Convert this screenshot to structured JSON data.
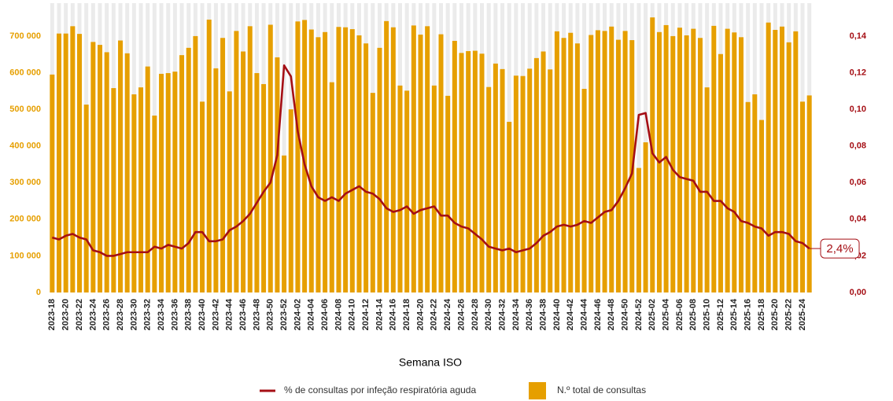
{
  "chart_data": {
    "type": "bar_line",
    "x_label": "Semana ISO",
    "categories": [
      "2023-18",
      null,
      "2023-20",
      null,
      "2023-22",
      null,
      "2023-24",
      null,
      "2023-26",
      null,
      "2023-28",
      null,
      "2023-30",
      null,
      "2023-32",
      null,
      "2023-34",
      null,
      "2023-36",
      null,
      "2023-38",
      null,
      "2023-40",
      null,
      "2023-42",
      null,
      "2023-44",
      null,
      "2023-46",
      null,
      "2023-48",
      null,
      "2023-50",
      null,
      "2023-52",
      null,
      "2024-02",
      null,
      "2024-04",
      null,
      "2024-06",
      null,
      "2024-08",
      null,
      "2024-10",
      null,
      "2024-12",
      null,
      "2024-14",
      null,
      "2024-16",
      null,
      "2024-18",
      null,
      "2024-20",
      null,
      "2024-22",
      null,
      "2024-24",
      null,
      "2024-26",
      null,
      "2024-28",
      null,
      "2024-30",
      null,
      "2024-32",
      null,
      "2024-34",
      null,
      "2024-36",
      null,
      "2024-38",
      null,
      "2024-40",
      null,
      "2024-42",
      null,
      "2024-44",
      null,
      "2024-46",
      null,
      "2024-48",
      null,
      "2024-50",
      null,
      "2024-52",
      null,
      "2025-02",
      null,
      "2025-04",
      null,
      "2025-06",
      null,
      "2025-08",
      null,
      "2025-10",
      null,
      "2025-12",
      null,
      "2025-14",
      null,
      "2025-16",
      null,
      "2025-18",
      null,
      "2025-20",
      null,
      "2025-22",
      null,
      "2025-24",
      null
    ],
    "series": [
      {
        "name": "N.º total de consultas",
        "type": "bar",
        "color": "#e69f00",
        "axis": "y",
        "values": [
          595000,
          707000,
          707000,
          727000,
          706000,
          513000,
          684000,
          676000,
          656000,
          558000,
          688000,
          653000,
          541000,
          560000,
          617000,
          483000,
          597000,
          599000,
          603000,
          648000,
          668000,
          700000,
          521000,
          745000,
          612000,
          695000,
          549000,
          714000,
          658000,
          727000,
          599000,
          569000,
          731000,
          642000,
          374000,
          500000,
          740000,
          744000,
          718000,
          697000,
          711000,
          574000,
          725000,
          724000,
          719000,
          702000,
          680000,
          545000,
          668000,
          741000,
          724000,
          565000,
          551000,
          729000,
          704000,
          727000,
          565000,
          705000,
          537000,
          687000,
          654000,
          659000,
          660000,
          652000,
          561000,
          625000,
          610000,
          466000,
          592000,
          591000,
          611000,
          640000,
          658000,
          609000,
          713000,
          695000,
          709000,
          680000,
          556000,
          703000,
          716000,
          714000,
          726000,
          690000,
          714000,
          689000,
          340000,
          410000,
          751000,
          711000,
          730000,
          700000,
          723000,
          702000,
          720000,
          695000,
          560000,
          728000,
          651000,
          720000,
          710000,
          697000,
          520000,
          541000,
          471000,
          737000,
          717000,
          726000,
          683000,
          713000,
          521000,
          538000
        ]
      },
      {
        "name": "% de consultas por infeção respiratória aguda",
        "type": "line",
        "color": "#a50f15",
        "axis": "y2",
        "values": [
          0.03,
          0.029,
          0.031,
          0.032,
          0.03,
          0.029,
          0.023,
          0.022,
          0.02,
          0.02,
          0.021,
          0.022,
          0.022,
          0.022,
          0.022,
          0.025,
          0.024,
          0.026,
          0.025,
          0.024,
          0.027,
          0.033,
          0.033,
          0.028,
          0.028,
          0.029,
          0.034,
          0.036,
          0.039,
          0.043,
          0.049,
          0.055,
          0.06,
          0.075,
          0.124,
          0.118,
          0.088,
          0.07,
          0.058,
          0.052,
          0.05,
          0.052,
          0.05,
          0.054,
          0.056,
          0.058,
          0.055,
          0.054,
          0.051,
          0.046,
          0.044,
          0.045,
          0.047,
          0.043,
          0.045,
          0.046,
          0.047,
          0.042,
          0.042,
          0.038,
          0.036,
          0.035,
          0.032,
          0.029,
          0.025,
          0.024,
          0.023,
          0.024,
          0.022,
          0.023,
          0.024,
          0.027,
          0.031,
          0.033,
          0.036,
          0.037,
          0.036,
          0.037,
          0.039,
          0.038,
          0.041,
          0.044,
          0.045,
          0.05,
          0.057,
          0.065,
          0.097,
          0.098,
          0.076,
          0.071,
          0.074,
          0.067,
          0.063,
          0.062,
          0.061,
          0.055,
          0.055,
          0.05,
          0.05,
          0.046,
          0.044,
          0.039,
          0.038,
          0.036,
          0.035,
          0.031,
          0.033,
          0.033,
          0.032,
          0.028,
          0.027,
          0.024
        ]
      }
    ],
    "annotation": "2,4%",
    "ylim": [
      0,
      790000
    ],
    "yticks": [
      0,
      {
        "value": 100000,
        "label": "100 000"
      },
      {
        "value": 200000,
        "label": "200 000"
      },
      {
        "value": 300000,
        "label": "300 000"
      },
      {
        "value": 400000,
        "label": "400 000"
      },
      {
        "value": 500000,
        "label": "500 000"
      },
      {
        "value": 600000,
        "label": "600 000"
      },
      {
        "value": 700000,
        "label": "700 000"
      }
    ],
    "y2lim": [
      0,
      0.158
    ],
    "y2ticks": [
      {
        "value": 0,
        "label": "0,00"
      },
      {
        "value": 0.02,
        "label": "0,02"
      },
      {
        "value": 0.04,
        "label": "0,04"
      },
      {
        "value": 0.06,
        "label": "0,06"
      },
      {
        "value": 0.08,
        "label": "0,08"
      },
      {
        "value": 0.1,
        "label": "0,10"
      },
      {
        "value": 0.12,
        "label": "0,12"
      },
      {
        "value": 0.14,
        "label": "0,14"
      }
    ],
    "legend": "bottom"
  }
}
